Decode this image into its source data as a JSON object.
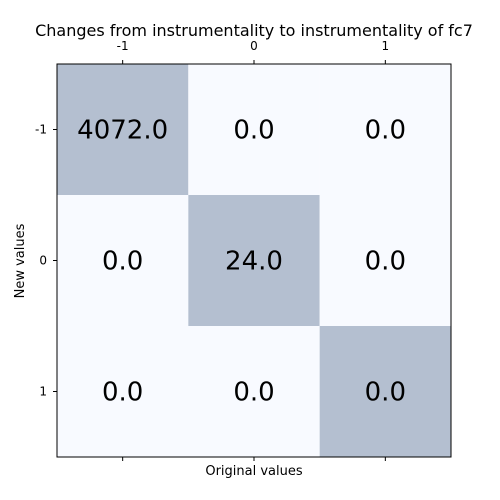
{
  "chart_data": {
    "type": "heatmap",
    "title": "Changes from instrumentality to instrumentality of fc7",
    "xlabel": "Original values",
    "ylabel": "New values",
    "x_categories": [
      "-1",
      "0",
      "1"
    ],
    "y_categories": [
      "-1",
      "0",
      "1"
    ],
    "x_ticks_position": "top-and-bottom",
    "values": [
      [
        4072.0,
        0.0,
        0.0
      ],
      [
        0.0,
        24.0,
        0.0
      ],
      [
        0.0,
        0.0,
        0.0
      ]
    ],
    "cell_labels": [
      [
        "4072.0",
        "0.0",
        "0.0"
      ],
      [
        "0.0",
        "24.0",
        "0.0"
      ],
      [
        "0.0",
        "0.0",
        "0.0"
      ]
    ],
    "highlighted_cells": [
      [
        0,
        0
      ],
      [
        1,
        1
      ],
      [
        2,
        2
      ]
    ],
    "colors": {
      "highlight": "#b4bfd0",
      "background": "#f8faff"
    },
    "grid": false
  }
}
